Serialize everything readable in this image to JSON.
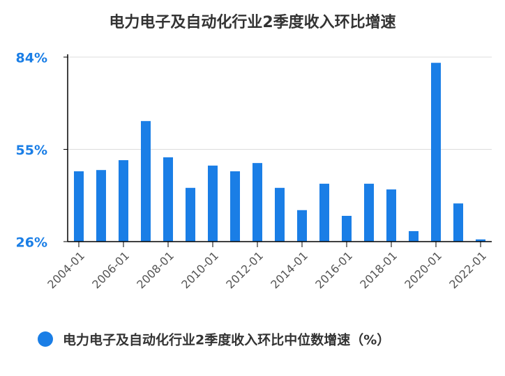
{
  "chart_data": {
    "type": "bar",
    "title": "电力电子及自动化行业2季度收入环比增速",
    "categories": [
      "2004-01",
      null,
      "2006-01",
      null,
      "2008-01",
      null,
      "2010-01",
      null,
      "2012-01",
      null,
      "2014-01",
      null,
      "2016-01",
      null,
      "2018-01",
      null,
      "2020-01",
      null,
      "2022-01"
    ],
    "series": [
      {
        "name": "电力电子及自动化行业2季度收入环比中位数增速（%）",
        "color": "#1a7ee6",
        "values": [
          48.1,
          48.5,
          51.6,
          63.9,
          52.5,
          42.9,
          49.9,
          48.1,
          50.7,
          42.9,
          35.9,
          44.2,
          34.1,
          44.2,
          42.4,
          29.3,
          82.2,
          38.0,
          26.7
        ]
      }
    ],
    "ylim": [
      26,
      84
    ],
    "yticks": [
      {
        "value": 26,
        "label": "26%"
      },
      {
        "value": 55,
        "label": "55%"
      },
      {
        "value": 84,
        "label": "84%"
      }
    ],
    "grid": true
  }
}
